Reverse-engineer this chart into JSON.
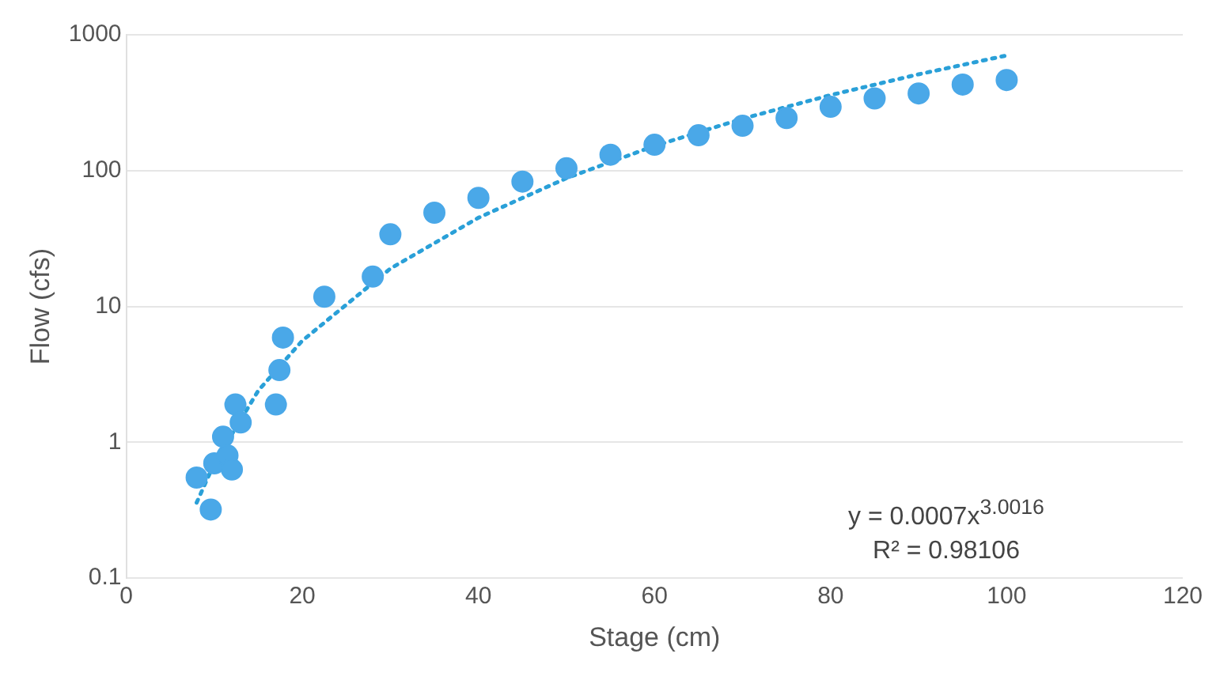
{
  "chart_data": {
    "type": "scatter",
    "xlabel": "Stage (cm)",
    "ylabel": "Flow (cfs)",
    "log": "y",
    "grid": "y",
    "marker": "circle",
    "legend": false,
    "xlim": [
      0,
      120
    ],
    "xticks": [
      0,
      20,
      40,
      60,
      80,
      100,
      120
    ],
    "ylim": [
      0.1,
      1000
    ],
    "yticks": [
      0.1,
      1,
      10,
      100,
      1000
    ],
    "annotations": [
      "y = 0.0007x$^{3.0016}$",
      "R² = 0.98106"
    ],
    "series": [
      {
        "type": "scatter",
        "color": "#4aa8e8",
        "x": [
          8,
          9.2,
          9.6,
          10,
          11,
          11.5,
          12,
          12.4,
          13,
          17,
          17.4,
          17.8,
          22.5,
          28,
          30,
          35,
          40,
          45,
          50,
          55,
          60,
          65,
          70,
          75,
          80,
          85,
          90,
          95,
          100
        ],
        "values": [
          0.55,
          null,
          0.32,
          0.7,
          1.1,
          0.8,
          0.63,
          1.9,
          1.4,
          1.9,
          3.4,
          5.9,
          11.8,
          16.6,
          34,
          49,
          63,
          83,
          104,
          131,
          155,
          182,
          214,
          244,
          295,
          340,
          370,
          430,
          465
        ]
      },
      {
        "type": "line",
        "color": "#2aa0d8",
        "line_style": "dotted",
        "marker": "none",
        "x": [
          8,
          10,
          15,
          20,
          30,
          40,
          50,
          60,
          70,
          80,
          90,
          100
        ],
        "values": [
          0.36,
          0.7,
          2.4,
          5.6,
          19,
          45,
          88,
          152,
          241,
          360,
          512,
          705
        ]
      }
    ]
  }
}
